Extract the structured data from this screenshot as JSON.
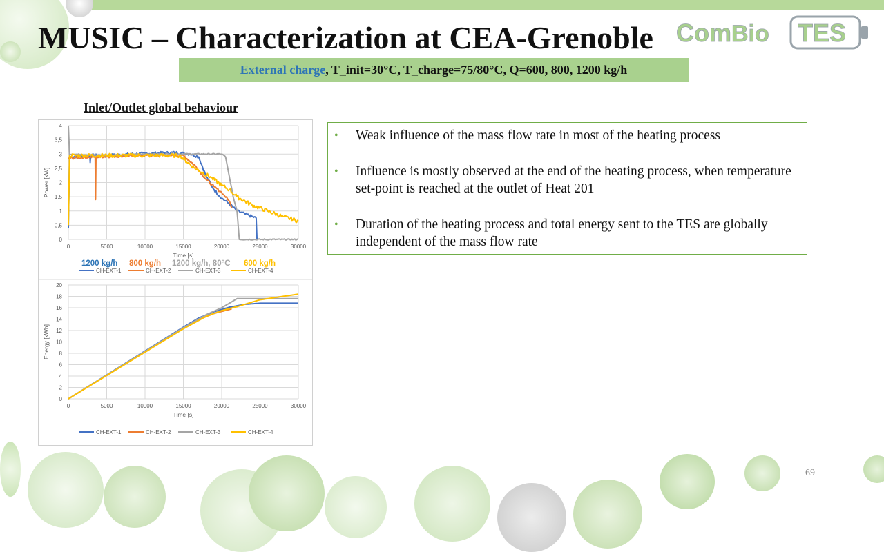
{
  "slide": {
    "title": "MUSIC – Characterization at CEA-Grenoble",
    "subtitle_link": "External charge",
    "subtitle_rest": ", T_init=30°C, T_charge=75/80°C, Q=600, 800, 1200 kg/h",
    "section_label": "Inlet/Outlet global behaviour",
    "bullets": [
      "Weak influence of the mass flow rate in most of the heating process",
      "Influence is mostly observed at the end of the heating process, when temperature set-point is reached at the outlet of Heat 201",
      "Duration of the heating process and total energy sent to the TES are globally independent of the mass flow rate"
    ],
    "page_number": "69",
    "logo": {
      "part1": "Com",
      "part2": "Bio",
      "part3": "TES"
    }
  },
  "colors": {
    "accent_green": "#70ad47",
    "subtitle_bg": "#a9d18e",
    "link_blue": "#2e75b6",
    "series": [
      "#4472c4",
      "#ed7d31",
      "#a5a5a5",
      "#ffc000"
    ]
  },
  "chart_data": [
    {
      "type": "line",
      "title": "",
      "xlabel": "Time [s]",
      "ylabel": "Power [kW]",
      "xlim": [
        0,
        30000
      ],
      "ylim": [
        0,
        4
      ],
      "xticks": [
        0,
        5000,
        10000,
        15000,
        20000,
        25000,
        30000
      ],
      "yticks": [
        0,
        0.5,
        1,
        1.5,
        2,
        2.5,
        3,
        3.5,
        4
      ],
      "ytick_labels": [
        "0",
        "0,5",
        "1",
        "1,5",
        "2",
        "2,5",
        "3",
        "3,5",
        "4"
      ],
      "annotations": [
        {
          "text": "1200 kg/h",
          "color": "#2e75b6"
        },
        {
          "text": "800 kg/h",
          "color": "#ed7d31"
        },
        {
          "text": "1200 kg/h, 80°C",
          "color": "#a5a5a5"
        },
        {
          "text": "600 kg/h",
          "color": "#ffc000"
        }
      ],
      "series": [
        {
          "name": "CH-EXT-1",
          "color": "#4472c4",
          "noise": 0.05,
          "points": [
            [
              0,
              0.4
            ],
            [
              150,
              2.9
            ],
            [
              2800,
              2.95
            ],
            [
              2850,
              2.7
            ],
            [
              2900,
              2.95
            ],
            [
              5000,
              2.95
            ],
            [
              10000,
              3.02
            ],
            [
              14000,
              3.05
            ],
            [
              16000,
              3.0
            ],
            [
              17000,
              2.9
            ],
            [
              18000,
              2.2
            ],
            [
              19000,
              1.75
            ],
            [
              20000,
              1.45
            ],
            [
              21000,
              1.25
            ],
            [
              22000,
              1.0
            ],
            [
              23000,
              0.9
            ],
            [
              24500,
              0.75
            ],
            [
              24600,
              0
            ]
          ]
        },
        {
          "name": "CH-EXT-2",
          "color": "#ed7d31",
          "noise": 0.04,
          "points": [
            [
              0,
              2.85
            ],
            [
              3500,
              2.9
            ],
            [
              3550,
              1.4
            ],
            [
              3600,
              2.9
            ],
            [
              10000,
              2.95
            ],
            [
              15000,
              2.95
            ],
            [
              16500,
              2.6
            ],
            [
              18000,
              2.1
            ],
            [
              19000,
              1.85
            ],
            [
              20000,
              1.65
            ],
            [
              21000,
              1.35
            ],
            [
              21300,
              1.1
            ]
          ]
        },
        {
          "name": "CH-EXT-3",
          "color": "#a5a5a5",
          "noise": 0.02,
          "points": [
            [
              0,
              4.0
            ],
            [
              150,
              3.0
            ],
            [
              5000,
              2.95
            ],
            [
              10000,
              3.0
            ],
            [
              15000,
              3.0
            ],
            [
              20000,
              3.0
            ],
            [
              20500,
              2.9
            ],
            [
              21000,
              2.2
            ],
            [
              21500,
              1.5
            ],
            [
              22000,
              1.0
            ],
            [
              22300,
              0
            ],
            [
              30000,
              0
            ]
          ]
        },
        {
          "name": "CH-EXT-4",
          "color": "#ffc000",
          "noise": 0.07,
          "points": [
            [
              0,
              0.5
            ],
            [
              150,
              2.95
            ],
            [
              5000,
              2.95
            ],
            [
              10000,
              2.95
            ],
            [
              14500,
              2.95
            ],
            [
              16500,
              2.5
            ],
            [
              18500,
              2.2
            ],
            [
              20000,
              1.9
            ],
            [
              21000,
              1.75
            ],
            [
              22000,
              1.5
            ],
            [
              24000,
              1.2
            ],
            [
              26000,
              1.0
            ],
            [
              28000,
              0.8
            ],
            [
              30000,
              0.65
            ]
          ]
        }
      ]
    },
    {
      "type": "line",
      "title": "",
      "xlabel": "Time [s]",
      "ylabel": "Energy [kWh]",
      "xlim": [
        0,
        30000
      ],
      "ylim": [
        0,
        20
      ],
      "xticks": [
        0,
        5000,
        10000,
        15000,
        20000,
        25000,
        30000
      ],
      "yticks": [
        0,
        2,
        4,
        6,
        8,
        10,
        12,
        14,
        16,
        18,
        20
      ],
      "ytick_labels": [
        "0",
        "2",
        "4",
        "6",
        "8",
        "10",
        "12",
        "14",
        "16",
        "18",
        "20"
      ],
      "series": [
        {
          "name": "CH-EXT-1",
          "color": "#4472c4",
          "noise": 0,
          "points": [
            [
              0,
              0
            ],
            [
              15000,
              12.6
            ],
            [
              17000,
              14.2
            ],
            [
              19000,
              15.3
            ],
            [
              21000,
              16.1
            ],
            [
              23000,
              16.6
            ],
            [
              25000,
              16.8
            ],
            [
              30000,
              16.8
            ]
          ]
        },
        {
          "name": "CH-EXT-2",
          "color": "#ed7d31",
          "noise": 0,
          "points": [
            [
              0,
              0
            ],
            [
              15000,
              12.4
            ],
            [
              17000,
              13.9
            ],
            [
              19000,
              15.0
            ],
            [
              21000,
              15.7
            ],
            [
              21300,
              15.8
            ]
          ]
        },
        {
          "name": "CH-EXT-3",
          "color": "#a5a5a5",
          "noise": 0,
          "points": [
            [
              0,
              0
            ],
            [
              15000,
              12.5
            ],
            [
              18000,
              14.8
            ],
            [
              20000,
              16.0
            ],
            [
              22000,
              17.6
            ],
            [
              30000,
              17.6
            ]
          ]
        },
        {
          "name": "CH-EXT-4",
          "color": "#ffc000",
          "noise": 0,
          "points": [
            [
              0,
              0
            ],
            [
              15000,
              12.3
            ],
            [
              18000,
              14.5
            ],
            [
              20000,
              15.5
            ],
            [
              22000,
              16.2
            ],
            [
              25000,
              17.4
            ],
            [
              30000,
              18.4
            ]
          ]
        }
      ]
    }
  ]
}
